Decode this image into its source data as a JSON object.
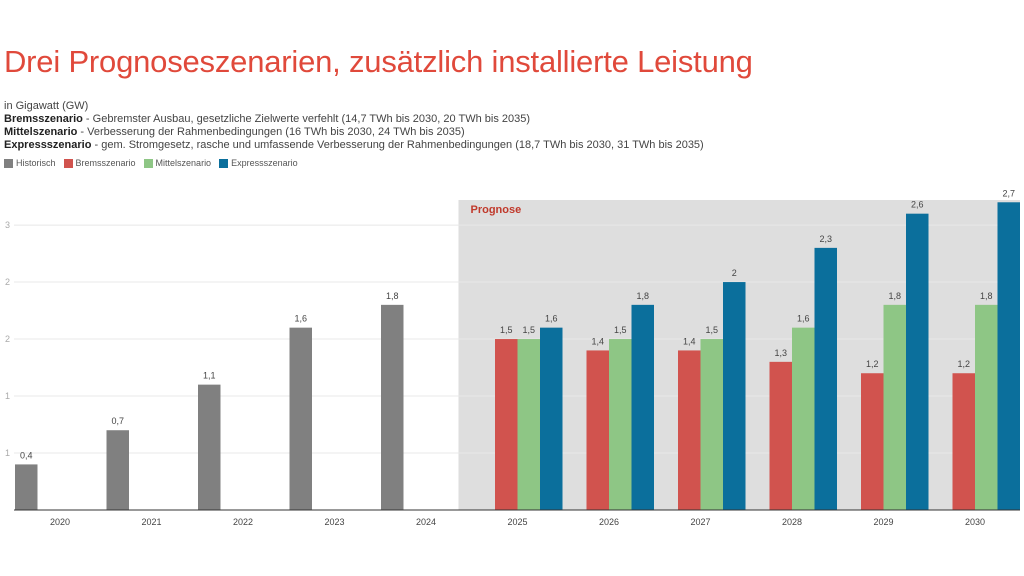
{
  "title": "Drei Prognoseszenarien, zusätzlich installierte Leistung",
  "unit_line": "in Gigawatt (GW)",
  "descriptions": [
    {
      "name": "Bremsszenario",
      "text": " - Gebremster Ausbau, gesetzliche Zielwerte verfehlt (14,7 TWh bis 2030, 20 TWh bis 2035)"
    },
    {
      "name": "Mittelszenario",
      "text": " - Verbesserung der Rahmenbedingungen (16 TWh bis 2030, 24 TWh bis 2035)"
    },
    {
      "name": "Expressszenario",
      "text": " - gem. Stromgesetz, rasche und umfassende Verbesserung der Rahmenbedingungen (18,7 TWh bis 2030, 31 TWh bis 2035)"
    }
  ],
  "chart_data": {
    "type": "bar",
    "title": "Drei Prognoseszenarien, zusätzlich installierte Leistung",
    "ylabel": "in Gigawatt (GW)",
    "categories": [
      "2020",
      "2021",
      "2022",
      "2023",
      "2024",
      "2025",
      "2026",
      "2027",
      "2028",
      "2029",
      "2030"
    ],
    "series": [
      {
        "name": "Historisch",
        "color": "#808080",
        "values": [
          0.4,
          0.7,
          1.1,
          1.6,
          1.8,
          null,
          null,
          null,
          null,
          null,
          null
        ]
      },
      {
        "name": "Bremsszenario",
        "color": "#d1534e",
        "values": [
          null,
          null,
          null,
          null,
          null,
          1.5,
          1.4,
          1.4,
          1.3,
          1.2,
          1.2
        ]
      },
      {
        "name": "Mittelszenario",
        "color": "#8ec685",
        "values": [
          null,
          null,
          null,
          null,
          null,
          1.5,
          1.5,
          1.5,
          1.6,
          1.8,
          1.8
        ]
      },
      {
        "name": "Expressszenario",
        "color": "#0b6f9c",
        "values": [
          null,
          null,
          null,
          null,
          null,
          1.6,
          1.8,
          2,
          2.3,
          2.6,
          2.7
        ]
      }
    ],
    "data_labels": {
      "Historisch": [
        "0,4",
        "0,7",
        "1,1",
        "1,6",
        "1,8"
      ],
      "Bremsszenario": [
        "1,5",
        "1,4",
        "1,4",
        "1,3",
        "1,2",
        "1,2"
      ],
      "Mittelszenario": [
        "1,5",
        "1,5",
        "1,5",
        "1,6",
        "1,8",
        "1,8"
      ],
      "Expressszenario": [
        "1,6",
        "1,8",
        "2",
        "2,3",
        "2,6",
        "2,7"
      ]
    },
    "yticks": [
      0.5,
      1,
      1.5,
      2,
      2.5
    ],
    "ytick_labels": [
      "1",
      "1",
      "2",
      "2",
      "3"
    ],
    "ylim": [
      0,
      2.72
    ],
    "grid": true,
    "legend": "top-left",
    "annotation": {
      "label": "Prognose",
      "from": "2025",
      "to": "2030",
      "shade_color": "#dedede",
      "label_color": "#c0392b"
    }
  }
}
